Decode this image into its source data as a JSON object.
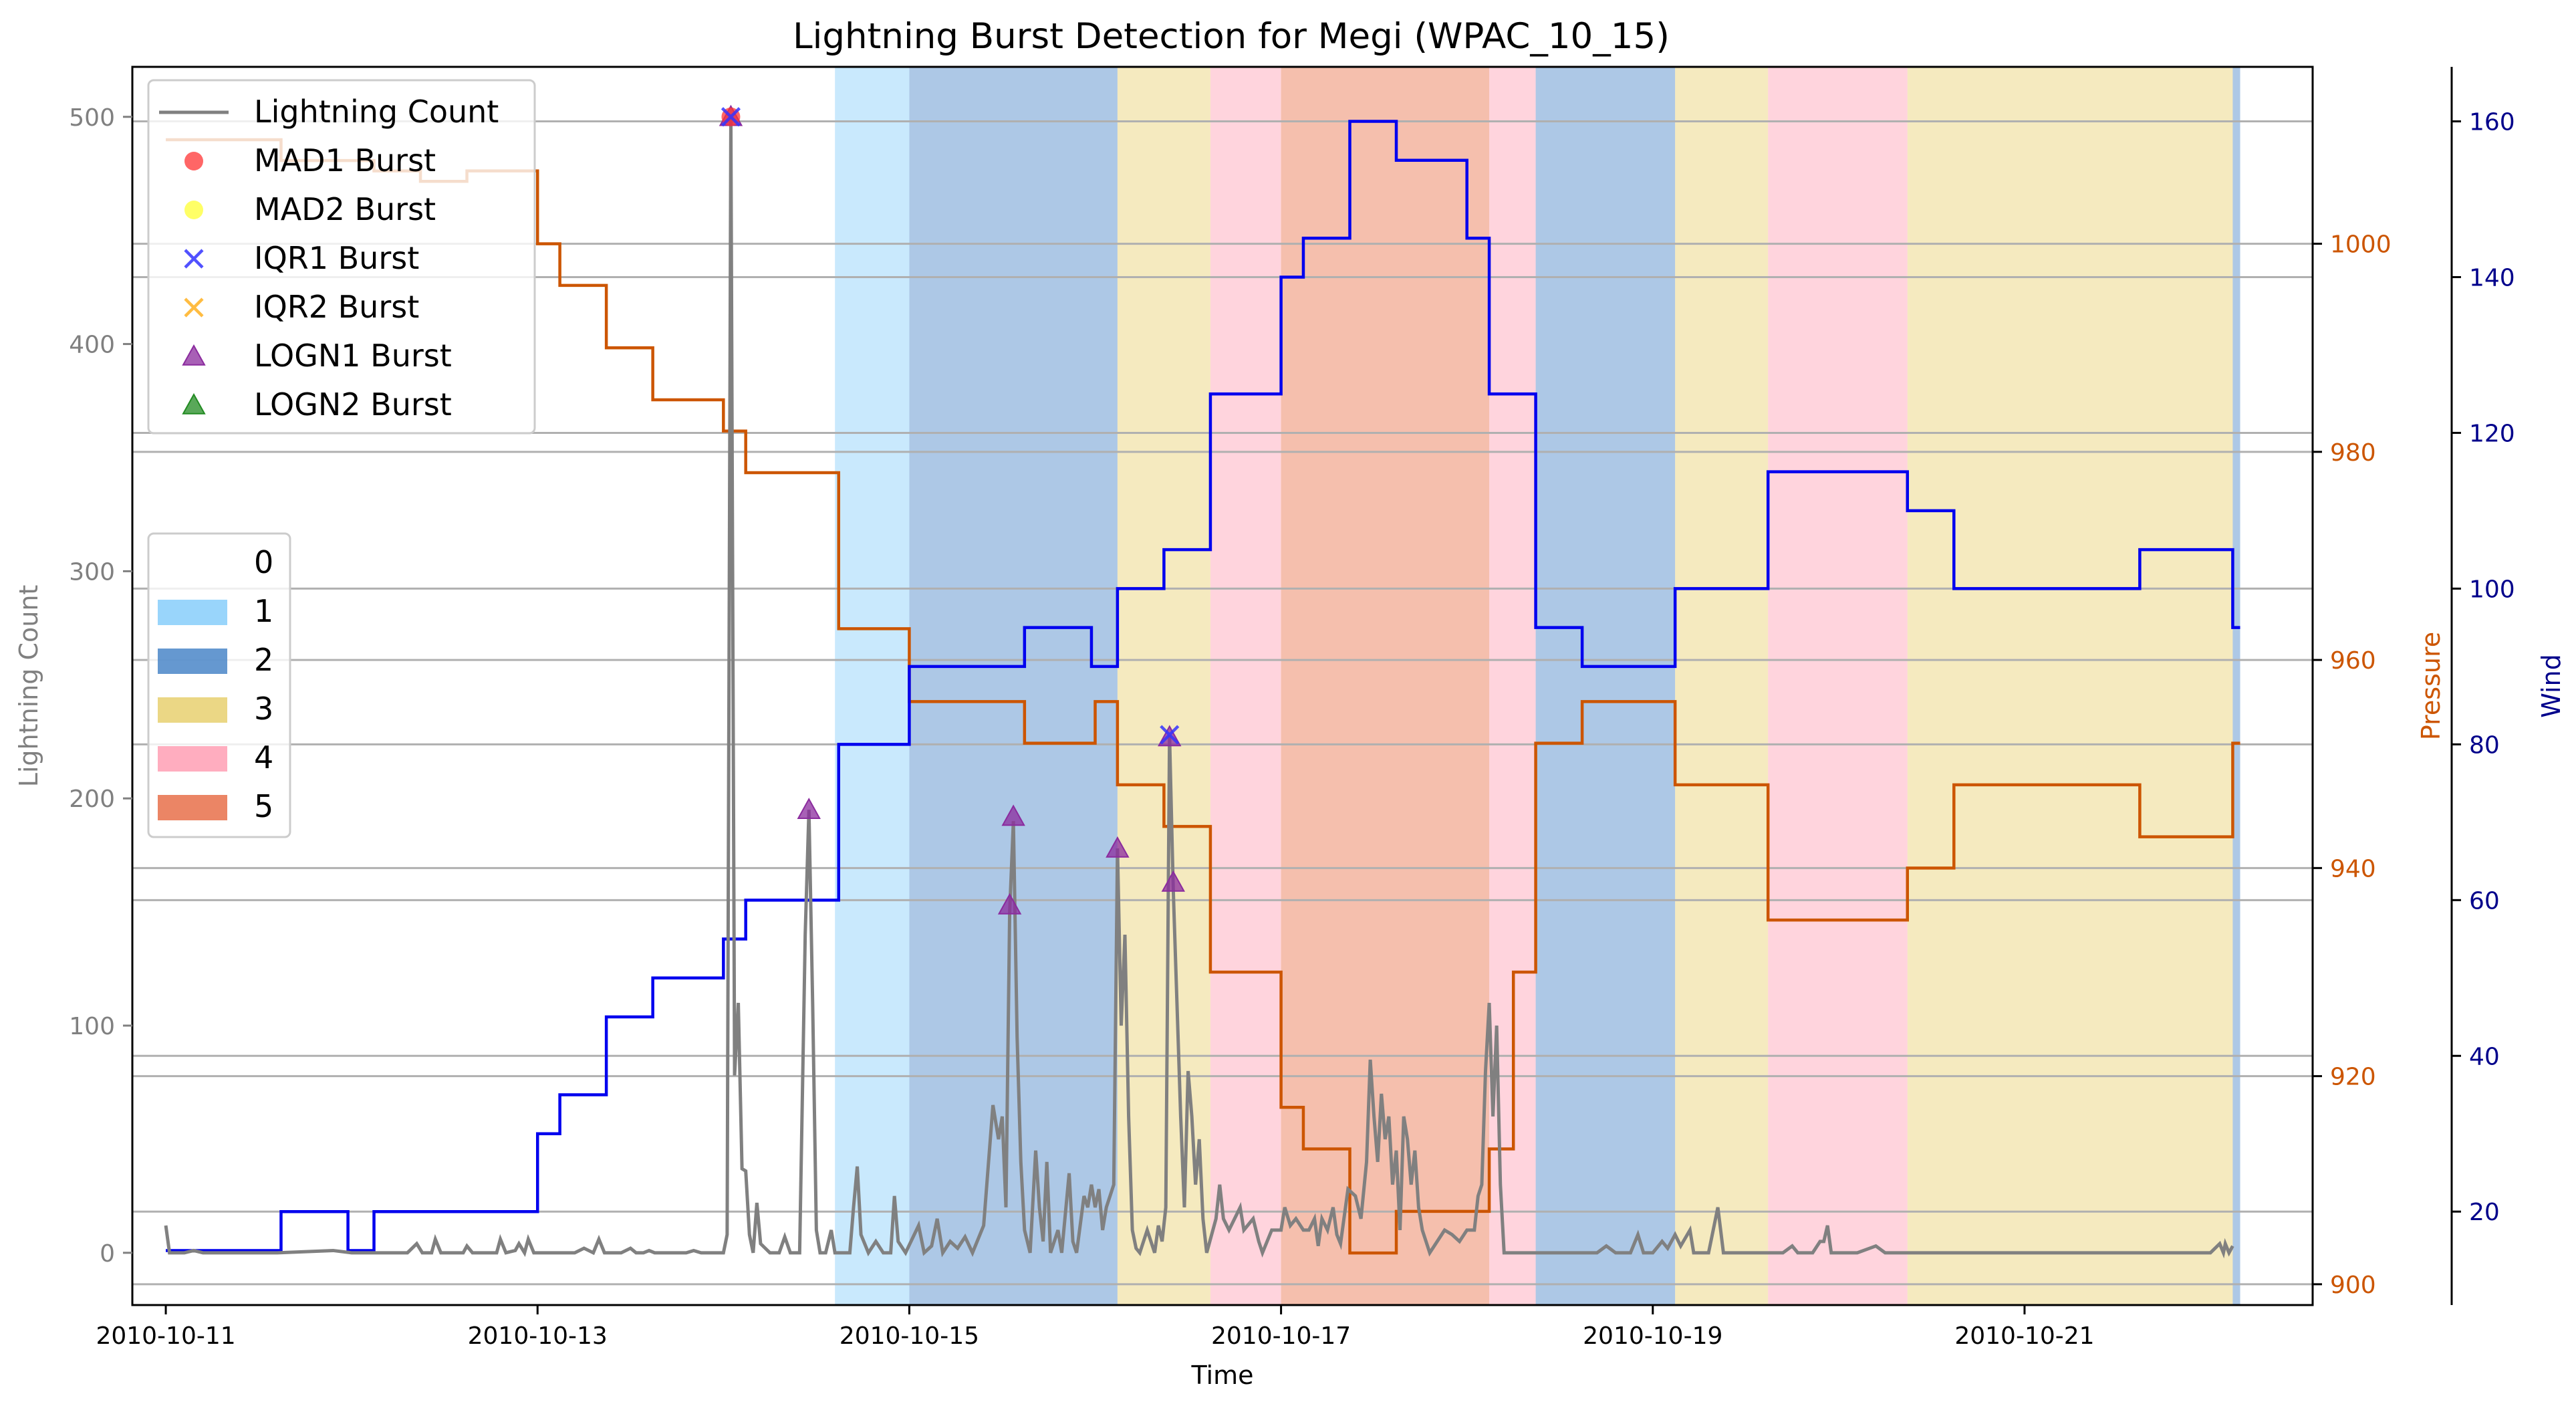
{
  "chart_data": {
    "type": "line",
    "title": "Lightning Burst Detection for Megi (WPAC_10_15)",
    "xlabel": "Time",
    "ylabel_left": "Lightning Count",
    "ylabel_pressure": "Pressure",
    "ylabel_wind": "Wind",
    "xlim": [
      -0.18,
      11.55
    ],
    "ylim_left": [
      -23,
      522
    ],
    "ylim_pressure": [
      898,
      1017
    ],
    "ylim_wind": [
      8,
      167
    ],
    "x_ticks": [
      {
        "v": 0,
        "label": "2010-10-11"
      },
      {
        "v": 2,
        "label": "2010-10-13"
      },
      {
        "v": 4,
        "label": "2010-10-15"
      },
      {
        "v": 6,
        "label": "2010-10-17"
      },
      {
        "v": 8,
        "label": "2010-10-19"
      },
      {
        "v": 10,
        "label": "2010-10-21"
      }
    ],
    "y_ticks_left": [
      0,
      100,
      200,
      300,
      400,
      500
    ],
    "y_ticks_pressure": [
      900,
      920,
      940,
      960,
      980,
      1000
    ],
    "y_ticks_wind": [
      20,
      40,
      60,
      80,
      100,
      120,
      140,
      160
    ],
    "grid": "horizontal",
    "colors": {
      "lightning": "#808080",
      "pressure": "#cc5500",
      "wind": "#0000ee",
      "pressure_axis": "#cc5500",
      "wind_axis": "#00008b",
      "left_axis": "#808080"
    },
    "category_colors": {
      "1": "#87cefa",
      "2": "#4a86c8",
      "3": "#e8d070",
      "4": "#ff9fb4",
      "5": "#e8704a"
    },
    "category_spans": [
      {
        "start": 3.6,
        "end": 4.0,
        "cat": "1"
      },
      {
        "start": 4.0,
        "end": 5.12,
        "cat": "2"
      },
      {
        "start": 5.12,
        "end": 5.62,
        "cat": "3"
      },
      {
        "start": 5.62,
        "end": 6.0,
        "cat": "4"
      },
      {
        "start": 6.0,
        "end": 7.12,
        "cat": "5"
      },
      {
        "start": 7.12,
        "end": 7.37,
        "cat": "4"
      },
      {
        "start": 7.37,
        "end": 8.12,
        "cat": "2"
      },
      {
        "start": 8.12,
        "end": 8.62,
        "cat": "3"
      },
      {
        "start": 8.62,
        "end": 9.37,
        "cat": "4"
      },
      {
        "start": 9.37,
        "end": 11.12,
        "cat": "3"
      },
      {
        "start": 11.12,
        "end": 11.16,
        "cat": "2"
      }
    ],
    "pressure_steps": [
      {
        "x": 0.0,
        "y": 1010
      },
      {
        "x": 0.62,
        "y": 1008
      },
      {
        "x": 1.12,
        "y": 1007
      },
      {
        "x": 1.37,
        "y": 1006
      },
      {
        "x": 1.62,
        "y": 1007
      },
      {
        "x": 2.0,
        "y": 1000
      },
      {
        "x": 2.12,
        "y": 996
      },
      {
        "x": 2.37,
        "y": 990
      },
      {
        "x": 2.62,
        "y": 985
      },
      {
        "x": 3.0,
        "y": 982
      },
      {
        "x": 3.12,
        "y": 978
      },
      {
        "x": 3.62,
        "y": 963
      },
      {
        "x": 4.0,
        "y": 956
      },
      {
        "x": 4.62,
        "y": 952
      },
      {
        "x": 5.0,
        "y": 956
      },
      {
        "x": 5.12,
        "y": 948
      },
      {
        "x": 5.37,
        "y": 944
      },
      {
        "x": 5.62,
        "y": 930
      },
      {
        "x": 6.0,
        "y": 917
      },
      {
        "x": 6.12,
        "y": 913
      },
      {
        "x": 6.37,
        "y": 903
      },
      {
        "x": 6.62,
        "y": 907
      },
      {
        "x": 7.12,
        "y": 913
      },
      {
        "x": 7.25,
        "y": 930
      },
      {
        "x": 7.37,
        "y": 952
      },
      {
        "x": 7.62,
        "y": 956
      },
      {
        "x": 8.12,
        "y": 948
      },
      {
        "x": 8.62,
        "y": 935
      },
      {
        "x": 9.37,
        "y": 940
      },
      {
        "x": 9.62,
        "y": 948
      },
      {
        "x": 10.62,
        "y": 943
      },
      {
        "x": 11.12,
        "y": 952
      }
    ],
    "wind_steps": [
      {
        "x": 0.0,
        "y": 15
      },
      {
        "x": 0.62,
        "y": 20
      },
      {
        "x": 0.98,
        "y": 15
      },
      {
        "x": 1.12,
        "y": 20
      },
      {
        "x": 2.0,
        "y": 30
      },
      {
        "x": 2.12,
        "y": 35
      },
      {
        "x": 2.37,
        "y": 45
      },
      {
        "x": 2.62,
        "y": 50
      },
      {
        "x": 3.0,
        "y": 55
      },
      {
        "x": 3.12,
        "y": 60
      },
      {
        "x": 3.62,
        "y": 80
      },
      {
        "x": 4.0,
        "y": 90
      },
      {
        "x": 4.62,
        "y": 95
      },
      {
        "x": 4.98,
        "y": 90
      },
      {
        "x": 5.12,
        "y": 100
      },
      {
        "x": 5.37,
        "y": 105
      },
      {
        "x": 5.62,
        "y": 125
      },
      {
        "x": 6.0,
        "y": 140
      },
      {
        "x": 6.12,
        "y": 145
      },
      {
        "x": 6.37,
        "y": 160
      },
      {
        "x": 6.62,
        "y": 155
      },
      {
        "x": 7.0,
        "y": 145
      },
      {
        "x": 7.12,
        "y": 125
      },
      {
        "x": 7.37,
        "y": 95
      },
      {
        "x": 7.62,
        "y": 90
      },
      {
        "x": 8.12,
        "y": 100
      },
      {
        "x": 8.62,
        "y": 115
      },
      {
        "x": 9.37,
        "y": 110
      },
      {
        "x": 9.62,
        "y": 100
      },
      {
        "x": 10.62,
        "y": 105
      },
      {
        "x": 11.12,
        "y": 95
      }
    ],
    "lightning_count": [
      [
        0.0,
        12
      ],
      [
        0.02,
        0
      ],
      [
        0.1,
        0
      ],
      [
        0.15,
        1
      ],
      [
        0.2,
        0
      ],
      [
        0.5,
        0
      ],
      [
        0.6,
        0
      ],
      [
        0.9,
        1
      ],
      [
        1.0,
        0
      ],
      [
        1.3,
        0
      ],
      [
        1.35,
        4
      ],
      [
        1.38,
        0
      ],
      [
        1.43,
        0
      ],
      [
        1.45,
        6
      ],
      [
        1.48,
        0
      ],
      [
        1.6,
        0
      ],
      [
        1.62,
        3
      ],
      [
        1.65,
        0
      ],
      [
        1.78,
        0
      ],
      [
        1.8,
        6
      ],
      [
        1.83,
        0
      ],
      [
        1.88,
        1
      ],
      [
        1.9,
        4
      ],
      [
        1.93,
        0
      ],
      [
        1.95,
        6
      ],
      [
        1.98,
        0
      ],
      [
        2.2,
        0
      ],
      [
        2.25,
        2
      ],
      [
        2.3,
        0
      ],
      [
        2.33,
        6
      ],
      [
        2.36,
        0
      ],
      [
        2.45,
        0
      ],
      [
        2.5,
        2
      ],
      [
        2.53,
        0
      ],
      [
        2.57,
        0
      ],
      [
        2.6,
        1
      ],
      [
        2.63,
        0
      ],
      [
        2.8,
        0
      ],
      [
        2.84,
        1
      ],
      [
        2.88,
        0
      ],
      [
        3.0,
        0
      ],
      [
        3.02,
        8
      ],
      [
        3.04,
        500
      ],
      [
        3.06,
        78
      ],
      [
        3.08,
        110
      ],
      [
        3.1,
        37
      ],
      [
        3.12,
        36
      ],
      [
        3.14,
        8
      ],
      [
        3.16,
        0
      ],
      [
        3.18,
        22
      ],
      [
        3.2,
        4
      ],
      [
        3.25,
        0
      ],
      [
        3.3,
        0
      ],
      [
        3.33,
        7
      ],
      [
        3.36,
        0
      ],
      [
        3.41,
        0
      ],
      [
        3.44,
        140
      ],
      [
        3.46,
        195
      ],
      [
        3.48,
        110
      ],
      [
        3.5,
        10
      ],
      [
        3.52,
        0
      ],
      [
        3.55,
        0
      ],
      [
        3.58,
        10
      ],
      [
        3.6,
        0
      ],
      [
        3.68,
        0
      ],
      [
        3.7,
        20
      ],
      [
        3.72,
        38
      ],
      [
        3.74,
        8
      ],
      [
        3.78,
        0
      ],
      [
        3.82,
        5
      ],
      [
        3.86,
        0
      ],
      [
        3.9,
        0
      ],
      [
        3.92,
        25
      ],
      [
        3.94,
        5
      ],
      [
        3.98,
        0
      ],
      [
        4.05,
        12
      ],
      [
        4.08,
        0
      ],
      [
        4.12,
        3
      ],
      [
        4.15,
        15
      ],
      [
        4.18,
        0
      ],
      [
        4.22,
        5
      ],
      [
        4.26,
        2
      ],
      [
        4.3,
        7
      ],
      [
        4.34,
        0
      ],
      [
        4.4,
        12
      ],
      [
        4.45,
        65
      ],
      [
        4.48,
        50
      ],
      [
        4.5,
        60
      ],
      [
        4.52,
        20
      ],
      [
        4.54,
        150
      ],
      [
        4.56,
        190
      ],
      [
        4.58,
        95
      ],
      [
        4.6,
        40
      ],
      [
        4.62,
        10
      ],
      [
        4.65,
        0
      ],
      [
        4.68,
        45
      ],
      [
        4.7,
        20
      ],
      [
        4.72,
        5
      ],
      [
        4.74,
        40
      ],
      [
        4.76,
        0
      ],
      [
        4.8,
        10
      ],
      [
        4.82,
        0
      ],
      [
        4.86,
        35
      ],
      [
        4.88,
        5
      ],
      [
        4.9,
        0
      ],
      [
        4.94,
        25
      ],
      [
        4.96,
        20
      ],
      [
        4.98,
        30
      ],
      [
        5.0,
        20
      ],
      [
        5.02,
        28
      ],
      [
        5.04,
        10
      ],
      [
        5.06,
        20
      ],
      [
        5.1,
        30
      ],
      [
        5.12,
        178
      ],
      [
        5.14,
        100
      ],
      [
        5.16,
        140
      ],
      [
        5.18,
        60
      ],
      [
        5.2,
        10
      ],
      [
        5.22,
        2
      ],
      [
        5.24,
        0
      ],
      [
        5.28,
        10
      ],
      [
        5.32,
        0
      ],
      [
        5.34,
        12
      ],
      [
        5.36,
        5
      ],
      [
        5.38,
        20
      ],
      [
        5.4,
        228
      ],
      [
        5.42,
        160
      ],
      [
        5.44,
        110
      ],
      [
        5.46,
        60
      ],
      [
        5.48,
        20
      ],
      [
        5.5,
        80
      ],
      [
        5.52,
        60
      ],
      [
        5.54,
        30
      ],
      [
        5.56,
        50
      ],
      [
        5.58,
        15
      ],
      [
        5.6,
        0
      ],
      [
        5.65,
        15
      ],
      [
        5.67,
        30
      ],
      [
        5.69,
        15
      ],
      [
        5.72,
        10
      ],
      [
        5.75,
        15
      ],
      [
        5.78,
        20
      ],
      [
        5.8,
        10
      ],
      [
        5.85,
        15
      ],
      [
        5.88,
        5
      ],
      [
        5.9,
        0
      ],
      [
        5.95,
        10
      ],
      [
        6.0,
        10
      ],
      [
        6.02,
        20
      ],
      [
        6.05,
        12
      ],
      [
        6.08,
        15
      ],
      [
        6.12,
        10
      ],
      [
        6.15,
        10
      ],
      [
        6.18,
        15
      ],
      [
        6.2,
        3
      ],
      [
        6.22,
        15
      ],
      [
        6.25,
        10
      ],
      [
        6.28,
        20
      ],
      [
        6.3,
        8
      ],
      [
        6.32,
        4
      ],
      [
        6.36,
        28
      ],
      [
        6.4,
        25
      ],
      [
        6.43,
        15
      ],
      [
        6.46,
        40
      ],
      [
        6.48,
        85
      ],
      [
        6.5,
        60
      ],
      [
        6.52,
        40
      ],
      [
        6.54,
        70
      ],
      [
        6.56,
        50
      ],
      [
        6.58,
        60
      ],
      [
        6.6,
        30
      ],
      [
        6.62,
        45
      ],
      [
        6.64,
        10
      ],
      [
        6.66,
        60
      ],
      [
        6.68,
        50
      ],
      [
        6.7,
        30
      ],
      [
        6.72,
        45
      ],
      [
        6.74,
        20
      ],
      [
        6.76,
        10
      ],
      [
        6.78,
        5
      ],
      [
        6.8,
        0
      ],
      [
        6.84,
        5
      ],
      [
        6.88,
        10
      ],
      [
        6.92,
        8
      ],
      [
        6.96,
        5
      ],
      [
        7.0,
        10
      ],
      [
        7.04,
        10
      ],
      [
        7.06,
        25
      ],
      [
        7.08,
        30
      ],
      [
        7.1,
        80
      ],
      [
        7.12,
        110
      ],
      [
        7.14,
        60
      ],
      [
        7.16,
        100
      ],
      [
        7.18,
        30
      ],
      [
        7.2,
        0
      ],
      [
        7.3,
        0
      ],
      [
        7.4,
        0
      ],
      [
        7.6,
        0
      ],
      [
        7.7,
        0
      ],
      [
        7.75,
        3
      ],
      [
        7.8,
        0
      ],
      [
        7.88,
        0
      ],
      [
        7.92,
        8
      ],
      [
        7.95,
        0
      ],
      [
        8.0,
        0
      ],
      [
        8.05,
        5
      ],
      [
        8.08,
        2
      ],
      [
        8.12,
        8
      ],
      [
        8.15,
        3
      ],
      [
        8.2,
        10
      ],
      [
        8.22,
        0
      ],
      [
        8.3,
        0
      ],
      [
        8.35,
        20
      ],
      [
        8.38,
        0
      ],
      [
        8.5,
        0
      ],
      [
        8.6,
        0
      ],
      [
        8.7,
        0
      ],
      [
        8.75,
        3
      ],
      [
        8.78,
        0
      ],
      [
        8.86,
        0
      ],
      [
        8.9,
        5
      ],
      [
        8.92,
        5
      ],
      [
        8.94,
        12
      ],
      [
        8.96,
        0
      ],
      [
        9.1,
        0
      ],
      [
        9.2,
        3
      ],
      [
        9.25,
        0
      ],
      [
        9.37,
        0
      ],
      [
        9.5,
        0
      ],
      [
        10.0,
        0
      ],
      [
        10.5,
        0
      ],
      [
        11.0,
        0
      ],
      [
        11.05,
        4
      ],
      [
        11.07,
        0
      ],
      [
        11.08,
        4
      ],
      [
        11.1,
        0
      ],
      [
        11.12,
        3
      ]
    ],
    "bursts": {
      "MAD1": [
        [
          3.04,
          500
        ]
      ],
      "IQR1": [
        [
          3.04,
          500
        ],
        [
          5.4,
          228
        ]
      ],
      "LOGN1": [
        [
          3.04,
          500
        ],
        [
          3.46,
          195
        ],
        [
          4.54,
          153
        ],
        [
          4.56,
          192
        ],
        [
          5.12,
          178
        ],
        [
          5.4,
          227
        ],
        [
          5.42,
          163
        ]
      ]
    },
    "legend_lines": [
      {
        "label": "Lightning Count",
        "marker": "line",
        "color": "#808080"
      },
      {
        "label": "MAD1 Burst",
        "marker": "circle",
        "color": "#ff3333"
      },
      {
        "label": "MAD2 Burst",
        "marker": "circle",
        "color": "#ffff33"
      },
      {
        "label": "IQR1 Burst",
        "marker": "x",
        "color": "#3333ff"
      },
      {
        "label": "IQR2 Burst",
        "marker": "x",
        "color": "#ffb020"
      },
      {
        "label": "LOGN1 Burst",
        "marker": "triangle",
        "color": "#8b2b9e"
      },
      {
        "label": "LOGN2 Burst",
        "marker": "triangle",
        "color": "#228b22"
      }
    ],
    "legend_categories": [
      {
        "label": "0",
        "color": ""
      },
      {
        "label": "1",
        "color": "#87cefa"
      },
      {
        "label": "2",
        "color": "#4a86c8"
      },
      {
        "label": "3",
        "color": "#e8d070"
      },
      {
        "label": "4",
        "color": "#ff9fb4"
      },
      {
        "label": "5",
        "color": "#e8704a"
      }
    ]
  }
}
